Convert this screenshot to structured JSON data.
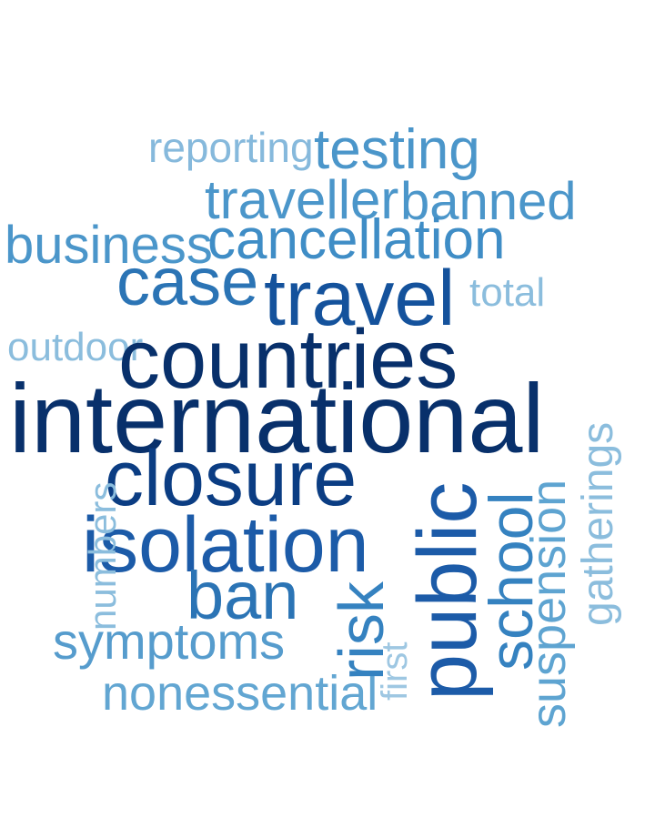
{
  "palette": {
    "darkest": "#08306b",
    "dark": "#1c5ba8",
    "mid": "#2e7ebc",
    "light": "#5ba1cf",
    "lightest": "#8cbbdb"
  },
  "words": {
    "international": {
      "text": "international",
      "color": "#08306b"
    },
    "countries": {
      "text": "countries",
      "color": "#08306b"
    },
    "closure": {
      "text": "closure",
      "color": "#0b3d83"
    },
    "isolation": {
      "text": "isolation",
      "color": "#1c5ba8"
    },
    "travel": {
      "text": "travel",
      "color": "#14529c"
    },
    "public": {
      "text": "public",
      "color": "#1c5ba8"
    },
    "case": {
      "text": "case",
      "color": "#2b74b5"
    },
    "ban": {
      "text": "ban",
      "color": "#2b74b5"
    },
    "risk": {
      "text": "risk",
      "color": "#3582c0"
    },
    "school": {
      "text": "school",
      "color": "#3582c0"
    },
    "cancellation": {
      "text": "cancellation",
      "color": "#3f8dc6"
    },
    "business": {
      "text": "business",
      "color": "#4b96ca"
    },
    "testing": {
      "text": "testing",
      "color": "#4b96ca"
    },
    "traveller": {
      "text": "traveller",
      "color": "#4b96ca"
    },
    "banned": {
      "text": "banned",
      "color": "#4b96ca"
    },
    "symptoms": {
      "text": "symptoms",
      "color": "#569ccd"
    },
    "suspension": {
      "text": "suspension",
      "color": "#5ea4d1"
    },
    "nonessential": {
      "text": "nonessential",
      "color": "#62a6d2"
    },
    "reporting": {
      "text": "reporting",
      "color": "#86b9dc"
    },
    "outdoor": {
      "text": "outdoor",
      "color": "#8bbddd"
    },
    "total": {
      "text": "total",
      "color": "#8bbddd"
    },
    "gatherings": {
      "text": "gatherings",
      "color": "#8bbddd"
    },
    "numbers": {
      "text": "numbers",
      "color": "#8bbddd"
    },
    "first": {
      "text": "first",
      "color": "#9ec7e2"
    }
  }
}
